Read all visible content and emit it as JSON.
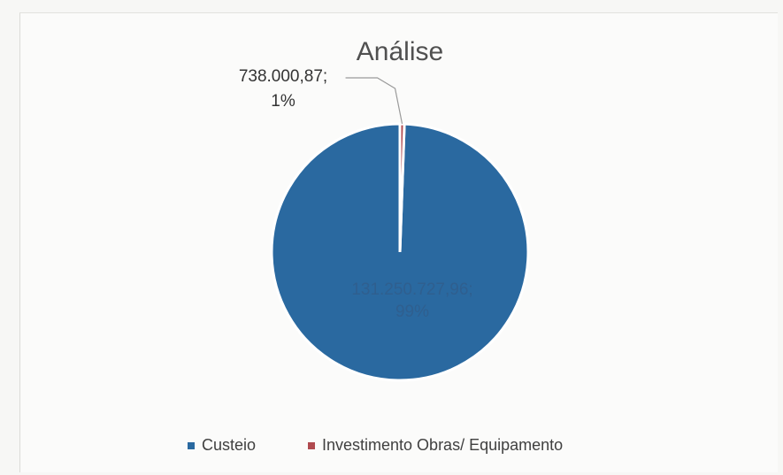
{
  "chart_data": {
    "type": "pie",
    "title": "Análise",
    "slices": [
      {
        "name": "Custeio",
        "value": 131250727.96,
        "value_label": "131.250.727,96;",
        "percent_label": "99%",
        "color": "#2a69a0"
      },
      {
        "name": "Investimento Obras/ Equipamento",
        "value": 738000.87,
        "value_label": "738.000,87;",
        "percent_label": "1%",
        "color": "#b04a4f"
      }
    ],
    "legend": {
      "position": "bottom"
    }
  }
}
